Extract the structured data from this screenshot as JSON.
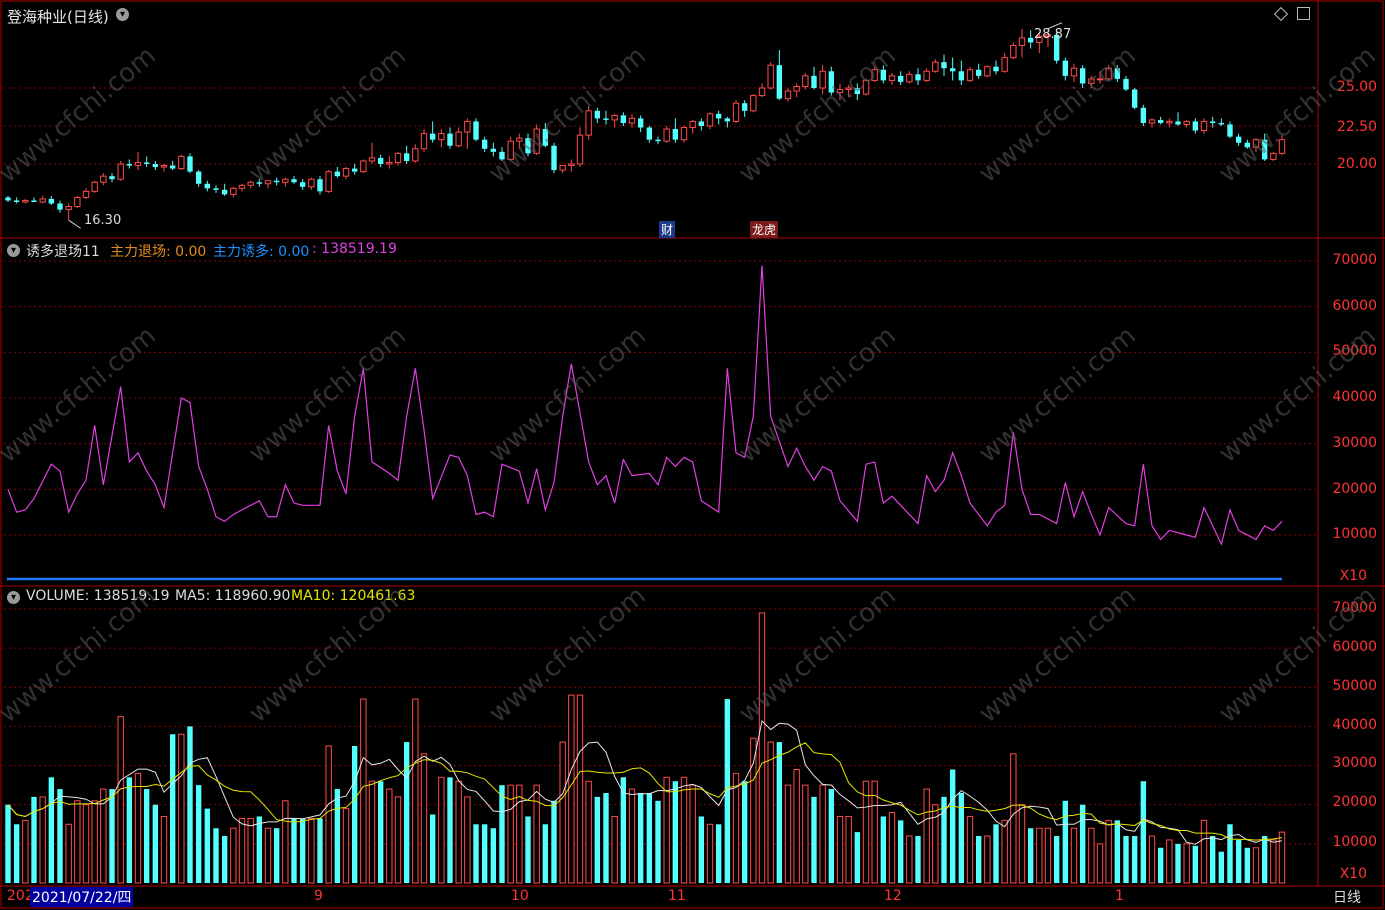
{
  "title": "登海种业(日线)",
  "indicator": {
    "name": "诱多退场11",
    "l1": "主力退场: 0.00",
    "l2": "主力诱多: 0.00",
    "l3": ": 138519.19"
  },
  "volume": {
    "label": "VOLUME: 138519.19",
    "ma5": "MA5: 118960.90",
    "ma10": "MA10: 120461.63"
  },
  "price_axis": [
    "25.00",
    "22.50",
    "20.00"
  ],
  "ind_axis": [
    "70000",
    "60000",
    "50000",
    "40000",
    "30000",
    "20000",
    "10000"
  ],
  "vol_axis": [
    "70000",
    "60000",
    "50000",
    "40000",
    "30000",
    "20000",
    "10000"
  ],
  "x10_label": "X10",
  "x_labels": [
    "202",
    "9",
    "10",
    "11",
    "12",
    "1"
  ],
  "cursor_date": "2021/07/22/四",
  "period_button": "日线",
  "max_label": "28.87",
  "min_label": "16.30",
  "events": {
    "cai": "财",
    "bang": "龙虎"
  },
  "watermark": "www.cfchi.com",
  "colors": {
    "up": "#ff4b4b",
    "down": "#54ffff",
    "grid": "#8a0000",
    "ind": "#e040e0",
    "ma5": "#e6e6e6",
    "ma10": "#e6e600",
    "blue": "#1e7bff",
    "axis": "#ff3333"
  },
  "chart_data": {
    "type": "candlestick",
    "ohlc": [
      [
        17.8,
        17.9,
        17.5,
        17.6
      ],
      [
        17.6,
        17.8,
        17.4,
        17.5
      ],
      [
        17.5,
        17.7,
        17.4,
        17.6
      ],
      [
        17.6,
        17.8,
        17.5,
        17.5
      ],
      [
        17.5,
        17.9,
        17.4,
        17.7
      ],
      [
        17.7,
        17.9,
        17.3,
        17.4
      ],
      [
        17.4,
        17.6,
        16.8,
        17.0
      ],
      [
        17.0,
        17.4,
        16.3,
        17.2
      ],
      [
        17.2,
        17.9,
        17.1,
        17.8
      ],
      [
        17.8,
        18.4,
        17.7,
        18.2
      ],
      [
        18.2,
        18.9,
        18.1,
        18.8
      ],
      [
        18.8,
        19.4,
        18.6,
        19.2
      ],
      [
        19.2,
        19.4,
        18.8,
        19.0
      ],
      [
        19.0,
        20.2,
        18.9,
        20.0
      ],
      [
        20.0,
        20.3,
        19.7,
        19.9
      ],
      [
        19.9,
        20.8,
        19.6,
        20.1
      ],
      [
        20.1,
        20.5,
        19.8,
        20.0
      ],
      [
        20.0,
        20.2,
        19.6,
        19.8
      ],
      [
        19.8,
        20.0,
        19.5,
        19.9
      ],
      [
        19.9,
        20.2,
        19.6,
        19.7
      ],
      [
        19.7,
        20.6,
        19.6,
        20.5
      ],
      [
        20.5,
        20.7,
        19.4,
        19.5
      ],
      [
        19.5,
        19.6,
        18.5,
        18.7
      ],
      [
        18.7,
        18.9,
        18.2,
        18.4
      ],
      [
        18.4,
        18.6,
        18.1,
        18.3
      ],
      [
        18.3,
        18.7,
        17.9,
        18.0
      ],
      [
        18.0,
        18.5,
        17.8,
        18.4
      ],
      [
        18.4,
        18.7,
        18.2,
        18.6
      ],
      [
        18.6,
        18.9,
        18.4,
        18.8
      ],
      [
        18.8,
        19.0,
        18.5,
        18.7
      ],
      [
        18.7,
        18.9,
        18.4,
        18.9
      ],
      [
        18.9,
        19.1,
        18.6,
        18.8
      ],
      [
        18.8,
        19.1,
        18.5,
        19.0
      ],
      [
        19.0,
        19.2,
        18.7,
        18.8
      ],
      [
        18.8,
        19.0,
        18.3,
        18.5
      ],
      [
        18.5,
        19.1,
        18.3,
        19.0
      ],
      [
        19.0,
        19.2,
        18.0,
        18.2
      ],
      [
        18.2,
        19.6,
        18.1,
        19.5
      ],
      [
        19.5,
        19.8,
        19.1,
        19.2
      ],
      [
        19.2,
        19.8,
        19.0,
        19.7
      ],
      [
        19.7,
        20.0,
        19.3,
        19.5
      ],
      [
        19.5,
        20.3,
        19.4,
        20.2
      ],
      [
        20.2,
        21.4,
        20.0,
        20.4
      ],
      [
        20.4,
        20.6,
        19.8,
        20.0
      ],
      [
        20.0,
        20.5,
        19.7,
        20.1
      ],
      [
        20.1,
        20.8,
        19.9,
        20.7
      ],
      [
        20.7,
        21.2,
        20.0,
        20.2
      ],
      [
        20.2,
        21.3,
        20.1,
        21.0
      ],
      [
        21.0,
        22.3,
        20.8,
        22.0
      ],
      [
        22.0,
        22.8,
        21.4,
        21.6
      ],
      [
        21.6,
        22.3,
        21.1,
        22.0
      ],
      [
        22.0,
        22.4,
        21.0,
        21.2
      ],
      [
        21.2,
        22.4,
        21.1,
        22.1
      ],
      [
        22.1,
        23.0,
        21.0,
        22.8
      ],
      [
        22.8,
        23.0,
        21.5,
        21.6
      ],
      [
        21.6,
        21.8,
        20.8,
        21.0
      ],
      [
        21.0,
        21.4,
        20.5,
        20.8
      ],
      [
        20.8,
        21.1,
        20.2,
        20.3
      ],
      [
        20.3,
        21.8,
        20.2,
        21.5
      ],
      [
        21.5,
        22.0,
        21.0,
        21.7
      ],
      [
        21.7,
        22.0,
        20.5,
        20.7
      ],
      [
        20.7,
        22.6,
        20.6,
        22.3
      ],
      [
        22.3,
        22.7,
        21.1,
        21.2
      ],
      [
        21.2,
        21.4,
        19.4,
        19.6
      ],
      [
        19.6,
        19.8,
        19.4,
        19.9
      ],
      [
        19.9,
        20.3,
        19.5,
        20.0
      ],
      [
        20.0,
        22.4,
        19.8,
        21.9
      ],
      [
        21.9,
        23.8,
        21.6,
        23.5
      ],
      [
        23.5,
        23.7,
        22.7,
        23.0
      ],
      [
        23.0,
        23.5,
        22.6,
        22.9
      ],
      [
        22.9,
        23.3,
        22.4,
        23.2
      ],
      [
        23.2,
        23.4,
        22.5,
        22.7
      ],
      [
        22.7,
        23.3,
        22.4,
        23.0
      ],
      [
        23.0,
        23.2,
        22.1,
        22.4
      ],
      [
        22.4,
        22.5,
        21.4,
        21.6
      ],
      [
        21.6,
        21.8,
        21.3,
        21.5
      ],
      [
        21.5,
        22.5,
        21.4,
        22.3
      ],
      [
        22.3,
        23.0,
        21.4,
        21.6
      ],
      [
        21.6,
        22.5,
        21.4,
        22.4
      ],
      [
        22.4,
        22.9,
        22.0,
        22.8
      ],
      [
        22.8,
        23.0,
        22.2,
        22.5
      ],
      [
        22.5,
        23.4,
        22.3,
        23.3
      ],
      [
        23.3,
        23.5,
        22.6,
        23.0
      ],
      [
        23.0,
        23.1,
        22.4,
        22.8
      ],
      [
        22.8,
        24.2,
        22.7,
        24.0
      ],
      [
        24.0,
        24.2,
        23.1,
        23.5
      ],
      [
        23.5,
        24.6,
        23.4,
        24.5
      ],
      [
        24.5,
        25.3,
        24.4,
        25.0
      ],
      [
        25.0,
        26.7,
        24.9,
        26.5
      ],
      [
        26.5,
        27.5,
        24.2,
        24.3
      ],
      [
        24.3,
        25.0,
        24.1,
        24.8
      ],
      [
        24.8,
        25.3,
        24.4,
        25.1
      ],
      [
        25.1,
        26.0,
        24.9,
        25.8
      ],
      [
        25.8,
        26.4,
        24.9,
        25.0
      ],
      [
        25.0,
        26.5,
        24.6,
        26.1
      ],
      [
        26.1,
        26.4,
        24.5,
        24.7
      ],
      [
        24.7,
        25.3,
        24.2,
        24.9
      ],
      [
        24.9,
        25.2,
        24.4,
        25.0
      ],
      [
        25.0,
        25.3,
        24.2,
        24.6
      ],
      [
        24.6,
        25.6,
        24.5,
        25.5
      ],
      [
        25.5,
        26.4,
        25.4,
        26.2
      ],
      [
        26.2,
        26.5,
        25.3,
        25.5
      ],
      [
        25.5,
        26.0,
        25.2,
        25.8
      ],
      [
        25.8,
        26.1,
        25.2,
        25.4
      ],
      [
        25.4,
        26.1,
        25.3,
        25.9
      ],
      [
        25.9,
        26.3,
        25.2,
        25.5
      ],
      [
        25.5,
        26.3,
        25.4,
        26.1
      ],
      [
        26.1,
        26.9,
        26.0,
        26.7
      ],
      [
        26.7,
        27.2,
        25.8,
        26.3
      ],
      [
        26.3,
        27.0,
        25.5,
        26.1
      ],
      [
        26.1,
        26.8,
        25.2,
        25.5
      ],
      [
        25.5,
        26.4,
        25.4,
        26.2
      ],
      [
        26.2,
        26.6,
        25.6,
        25.8
      ],
      [
        25.8,
        26.5,
        25.7,
        26.4
      ],
      [
        26.4,
        26.8,
        25.9,
        26.1
      ],
      [
        26.1,
        27.3,
        26.0,
        27.0
      ],
      [
        27.0,
        28.0,
        26.9,
        27.8
      ],
      [
        27.8,
        28.87,
        27.0,
        28.3
      ],
      [
        28.3,
        28.8,
        27.6,
        28.0
      ],
      [
        28.0,
        28.6,
        27.3,
        28.4
      ],
      [
        28.4,
        28.9,
        27.7,
        28.5
      ],
      [
        28.5,
        28.7,
        26.6,
        26.8
      ],
      [
        26.8,
        27.0,
        25.5,
        25.8
      ],
      [
        25.8,
        26.6,
        25.4,
        26.3
      ],
      [
        26.3,
        26.5,
        25.0,
        25.3
      ],
      [
        25.3,
        25.8,
        25.0,
        25.6
      ],
      [
        25.6,
        26.1,
        25.3,
        25.6
      ],
      [
        25.6,
        26.5,
        25.5,
        26.3
      ],
      [
        26.3,
        26.5,
        25.4,
        25.6
      ],
      [
        25.6,
        25.8,
        24.8,
        24.9
      ],
      [
        24.9,
        25.0,
        23.6,
        23.7
      ],
      [
        23.7,
        23.9,
        22.5,
        22.7
      ],
      [
        22.7,
        23.0,
        22.4,
        22.9
      ],
      [
        22.9,
        23.1,
        22.6,
        22.7
      ],
      [
        22.7,
        23.0,
        22.4,
        22.8
      ],
      [
        22.8,
        23.4,
        22.5,
        22.6
      ],
      [
        22.6,
        22.9,
        22.4,
        22.8
      ],
      [
        22.8,
        23.0,
        22.0,
        22.2
      ],
      [
        22.2,
        23.0,
        22.0,
        22.8
      ],
      [
        22.8,
        23.1,
        22.4,
        22.7
      ],
      [
        22.7,
        23.0,
        22.5,
        22.6
      ],
      [
        22.6,
        22.8,
        21.7,
        21.8
      ],
      [
        21.8,
        22.0,
        21.2,
        21.4
      ],
      [
        21.4,
        21.6,
        21.0,
        21.1
      ],
      [
        21.1,
        21.7,
        20.8,
        21.6
      ],
      [
        21.6,
        22.0,
        20.2,
        20.3
      ],
      [
        20.3,
        20.8,
        20.2,
        20.7
      ],
      [
        20.7,
        21.9,
        20.6,
        21.6
      ]
    ],
    "indicator": [
      20000,
      15000,
      15500,
      18000,
      25500,
      24000,
      15000,
      19000,
      22000,
      34000,
      21000,
      42500,
      26000,
      28000,
      24000,
      21000,
      16000,
      40000,
      39000,
      25000,
      20000,
      14000,
      13000,
      14500,
      16500,
      17500,
      14000,
      14000,
      21000,
      17000,
      16500,
      16500,
      34000,
      24000,
      19000,
      36000,
      46500,
      26000,
      23500,
      22000,
      36000,
      46500,
      33000,
      18000,
      27500,
      27000,
      23000,
      14500,
      15000,
      14000,
      25500,
      24000,
      17000,
      24500,
      15500,
      21500,
      36000,
      47500,
      26000,
      21000,
      23000,
      17000,
      26500,
      23000,
      23500,
      21000,
      27000,
      25000,
      27000,
      26000,
      17500,
      15000,
      46500,
      28000,
      27000,
      36000,
      69000,
      36000,
      25000,
      29000,
      25000,
      22000,
      25000,
      24000,
      17500,
      13000,
      25500,
      26000,
      17000,
      18500,
      16500,
      12500,
      23000,
      19500,
      22000,
      28000,
      23000,
      17000,
      12000,
      15000,
      16500,
      32500,
      20000,
      14500,
      14500,
      12500,
      21500,
      14000,
      19500,
      14500,
      10000,
      16000,
      12500,
      12000,
      25500,
      12000,
      9000,
      11000,
      10000,
      9500,
      16000,
      12000,
      8000,
      15500,
      11000,
      9000,
      12000,
      11000,
      13000
    ],
    "vol_is_up": null,
    "vol": [
      20000,
      15000,
      16000,
      22000,
      27000,
      24000,
      15000,
      21000,
      20000,
      21000,
      24000,
      42500,
      27000,
      28000,
      24000,
      20000,
      17000,
      38000,
      40000,
      25000,
      19000,
      14000,
      12000,
      14000,
      16500,
      17000,
      14000,
      14000,
      21000,
      16500,
      16500,
      16500,
      35000,
      24000,
      19000,
      35000,
      47000,
      26000,
      24000,
      22000,
      36000,
      47000,
      33000,
      17500,
      27000,
      26000,
      22000,
      15000,
      15000,
      14000,
      25000,
      25000,
      17000,
      25000,
      15000,
      21000,
      36000,
      48000,
      26000,
      22000,
      23000,
      17000,
      27000,
      24000,
      23000,
      21000,
      27000,
      26000,
      27000,
      25000,
      17000,
      15000,
      47000,
      28000,
      26000,
      37000,
      69000,
      36000,
      25000,
      29000,
      25000,
      22000,
      25000,
      24000,
      17000,
      13000,
      26000,
      26000,
      17000,
      18000,
      16000,
      12000,
      24000,
      20000,
      22000,
      29000,
      23000,
      17000,
      12000,
      15000,
      16000,
      33000,
      20000,
      14000,
      14000,
      12000,
      21000,
      14000,
      20000,
      14000,
      10000,
      16000,
      12000,
      12000,
      26000,
      12000,
      9000,
      11000,
      10000,
      9500,
      16000,
      12000,
      8000,
      15000,
      11000,
      9000,
      12000,
      11000,
      13000
    ]
  }
}
